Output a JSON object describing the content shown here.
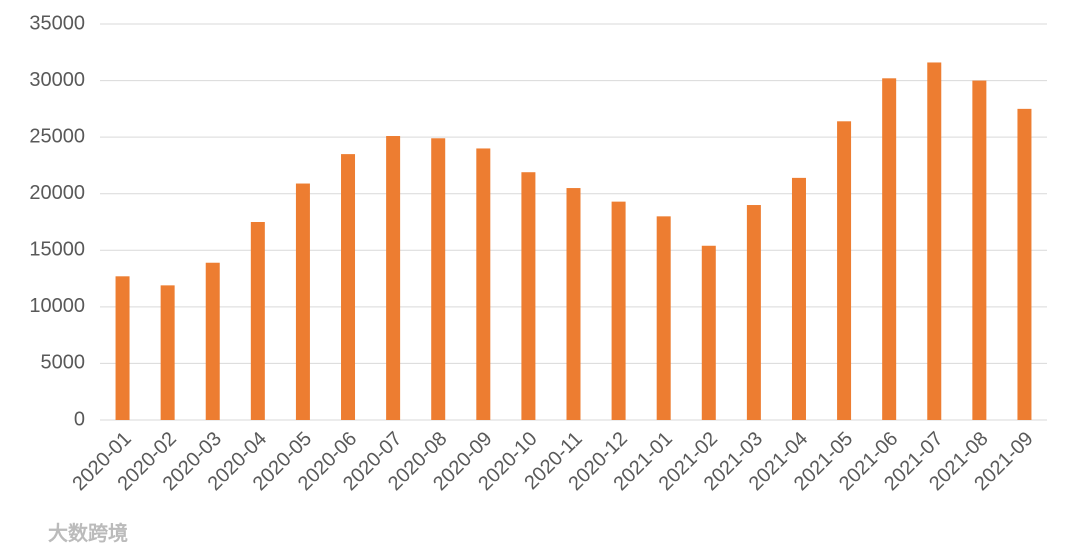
{
  "chart_data": {
    "type": "bar",
    "categories": [
      "2020-01",
      "2020-02",
      "2020-03",
      "2020-04",
      "2020-05",
      "2020-06",
      "2020-07",
      "2020-08",
      "2020-09",
      "2020-10",
      "2020-11",
      "2020-12",
      "2021-01",
      "2021-02",
      "2021-03",
      "2021-04",
      "2021-05",
      "2021-06",
      "2021-07",
      "2021-08",
      "2021-09"
    ],
    "values": [
      12700,
      11900,
      13900,
      17500,
      20900,
      23500,
      25100,
      24900,
      24000,
      21900,
      20500,
      19300,
      18000,
      15400,
      19000,
      21400,
      26400,
      30200,
      31600,
      30000,
      27500
    ],
    "color": "#ed7d31",
    "ylim": [
      0,
      35000
    ],
    "yticks": [
      0,
      5000,
      10000,
      15000,
      20000,
      25000,
      30000,
      35000
    ],
    "grid": true,
    "watermark": "大数跨境"
  }
}
